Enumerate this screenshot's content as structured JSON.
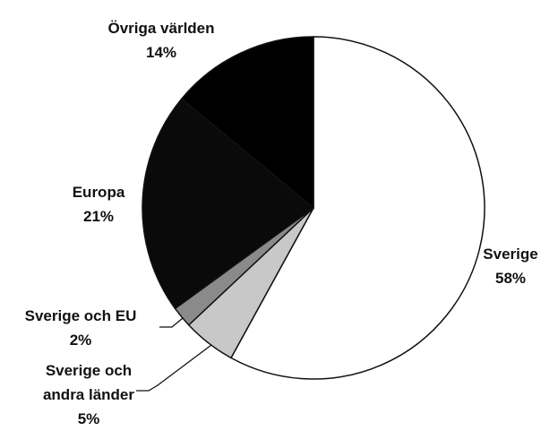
{
  "chart_data": {
    "type": "pie",
    "categories": [
      "Sverige",
      "Sverige och andra länder",
      "Sverige och EU",
      "Europa",
      "Övriga världen"
    ],
    "values": [
      58,
      5,
      2,
      21,
      14
    ],
    "value_labels": [
      "58%",
      "5%",
      "2%",
      "21%",
      "14%"
    ],
    "colors": [
      "#ffffff",
      "#c8c8c8",
      "#8a8a8a",
      "#0a0a0a",
      "#000000"
    ]
  }
}
